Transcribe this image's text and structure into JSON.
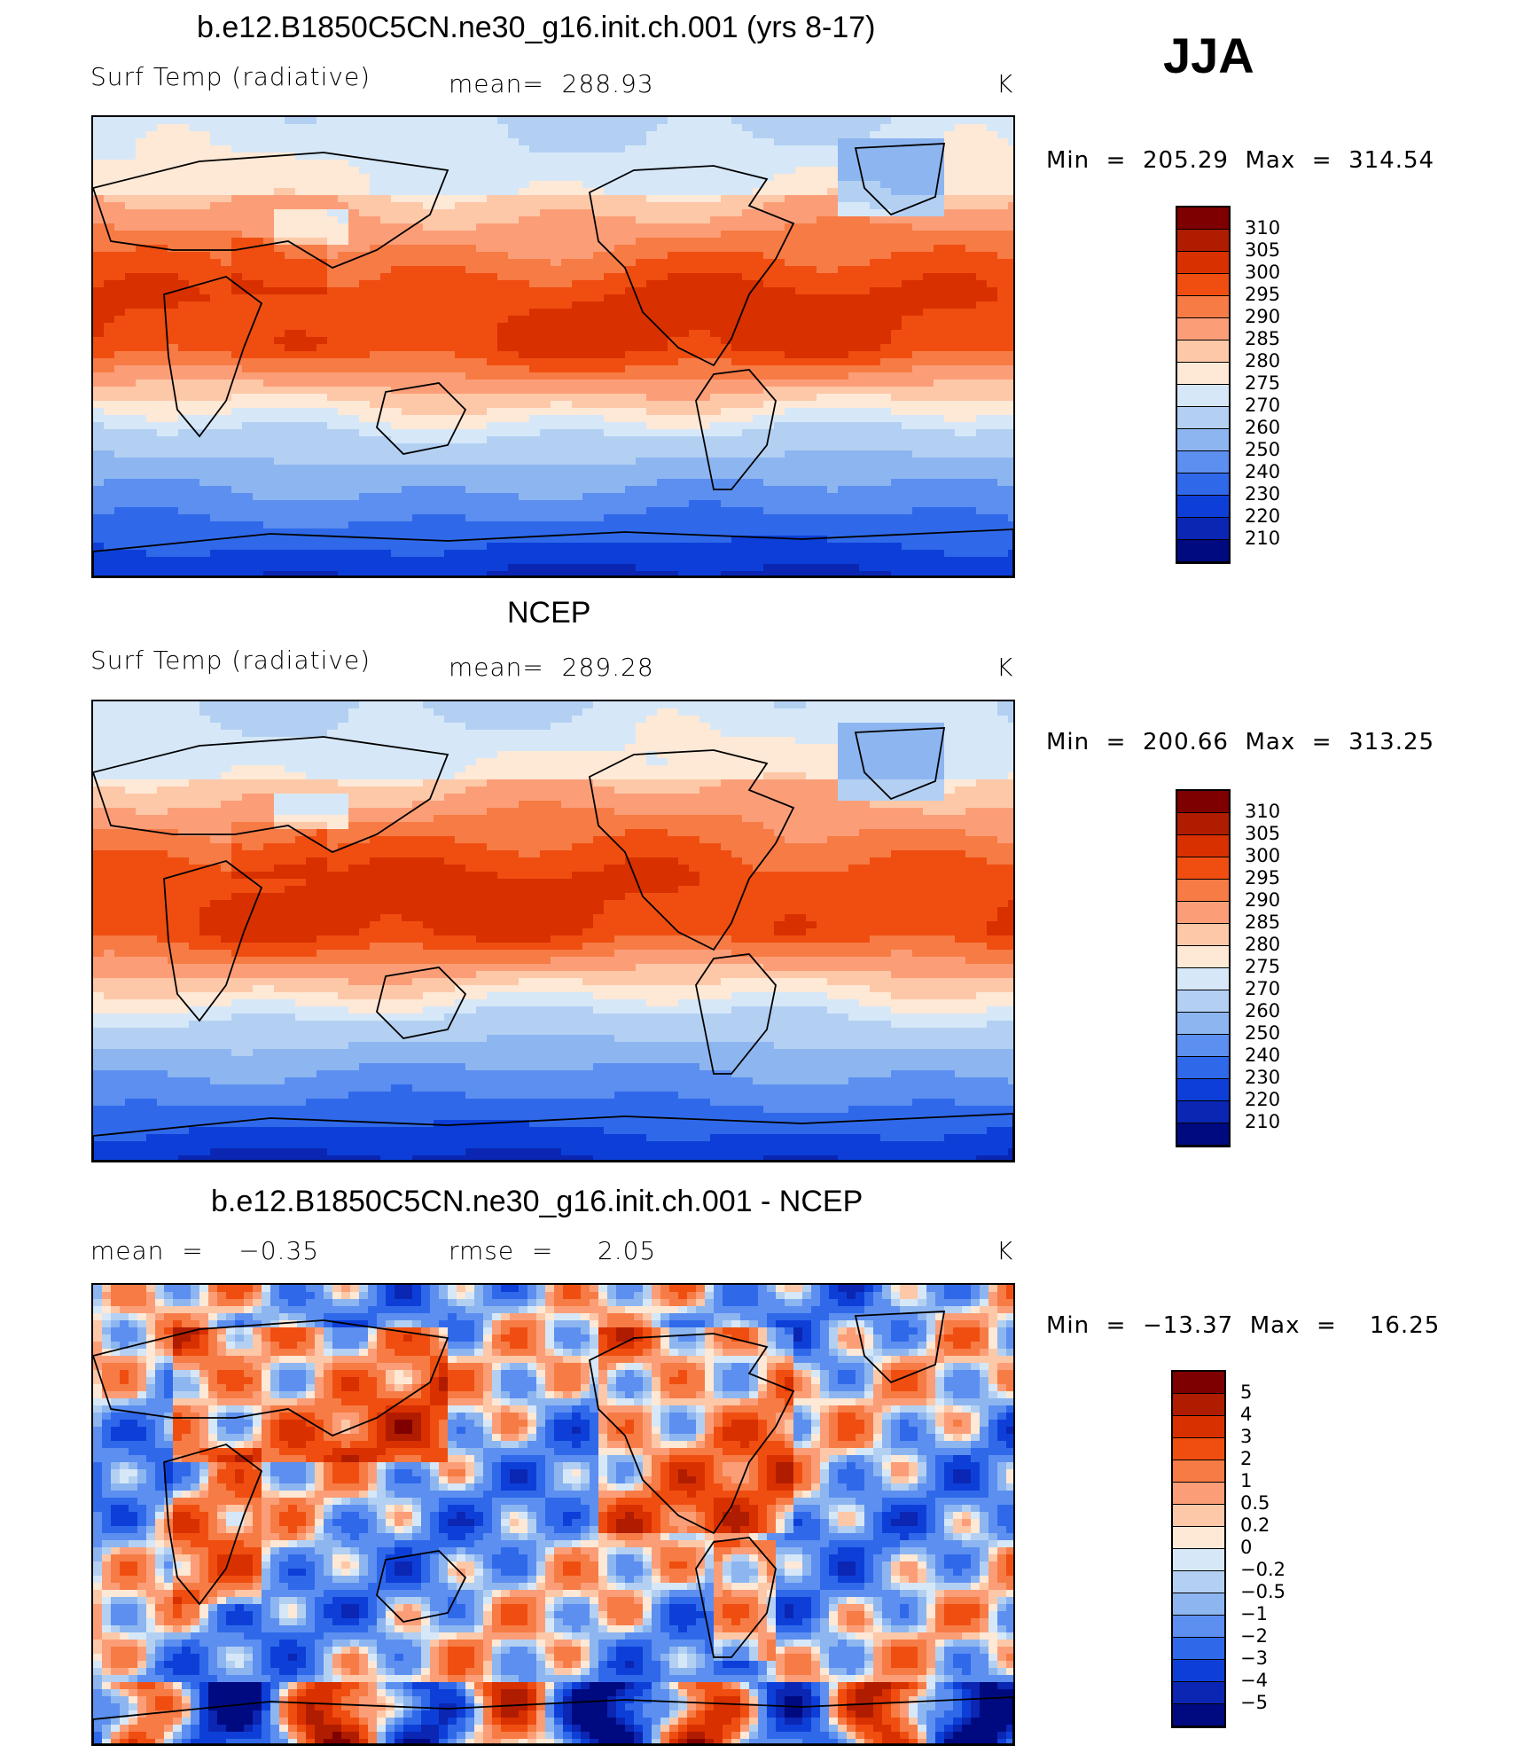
{
  "season": "JJA",
  "panels": [
    {
      "title": "b.e12.B1850C5CN.ne30_g16.init.ch.001 (yrs 8-17)",
      "left": "Surf Temp (radiative)",
      "middle": "mean=  288.93",
      "units": "K",
      "minmax": "Min  =  205.29  Max  =  314.54"
    },
    {
      "title": "NCEP",
      "left": "Surf Temp (radiative)",
      "middle": "mean=  289.28",
      "units": "K",
      "minmax": "Min  =  200.66  Max  =  313.25"
    },
    {
      "title": "b.e12.B1850C5CN.ne30_g16.init.ch.001 - NCEP",
      "left": "mean  =    −0.35",
      "middle": "rmse  =     2.05",
      "units": "K",
      "minmax": "Min  =  −13.37  Max  =    16.25"
    }
  ],
  "chart_data": [
    {
      "type": "heatmap",
      "title": "b.e12.B1850C5CN.ne30_g16.init.ch.001 (yrs 8-17)",
      "variable": "Surf Temp (radiative)",
      "units": "K",
      "mean": 288.93,
      "min": 205.29,
      "max": 314.54,
      "colorbar_levels": [
        "310",
        "305",
        "300",
        "295",
        "290",
        "285",
        "280",
        "275",
        "270",
        "260",
        "250",
        "240",
        "230",
        "220",
        "210"
      ],
      "colorbar_colors": [
        "#7f0000",
        "#b01c00",
        "#d93000",
        "#ef4e10",
        "#f77b45",
        "#fb9e78",
        "#fdc8a8",
        "#fee8d6",
        "#d6e8f8",
        "#b3d0f3",
        "#8db6f0",
        "#5c8ff0",
        "#2f69ea",
        "#0d3fd8",
        "#0a26b3",
        "#000a80"
      ]
    },
    {
      "type": "heatmap",
      "title": "NCEP",
      "variable": "Surf Temp (radiative)",
      "units": "K",
      "mean": 289.28,
      "min": 200.66,
      "max": 313.25,
      "colorbar_levels": [
        "310",
        "305",
        "300",
        "295",
        "290",
        "285",
        "280",
        "275",
        "270",
        "260",
        "250",
        "240",
        "230",
        "220",
        "210"
      ],
      "colorbar_colors": [
        "#7f0000",
        "#b01c00",
        "#d93000",
        "#ef4e10",
        "#f77b45",
        "#fb9e78",
        "#fdc8a8",
        "#fee8d6",
        "#d6e8f8",
        "#b3d0f3",
        "#8db6f0",
        "#5c8ff0",
        "#2f69ea",
        "#0d3fd8",
        "#0a26b3",
        "#000a80"
      ]
    },
    {
      "type": "heatmap",
      "title": "b.e12.B1850C5CN.ne30_g16.init.ch.001 - NCEP",
      "units": "K",
      "mean": -0.35,
      "rmse": 2.05,
      "min": -13.37,
      "max": 16.25,
      "colorbar_levels": [
        "5",
        "4",
        "3",
        "2",
        "1",
        "0.5",
        "0.2",
        "0",
        "−0.2",
        "−0.5",
        "−1",
        "−2",
        "−3",
        "−4",
        "−5"
      ],
      "colorbar_colors": [
        "#7f0000",
        "#b01c00",
        "#d93000",
        "#ef4e10",
        "#f77b45",
        "#fb9e78",
        "#fdc8a8",
        "#fee8d6",
        "#d6e8f8",
        "#b3d0f3",
        "#8db6f0",
        "#5c8ff0",
        "#2f69ea",
        "#0d3fd8",
        "#0a26b3",
        "#000a80"
      ]
    }
  ]
}
